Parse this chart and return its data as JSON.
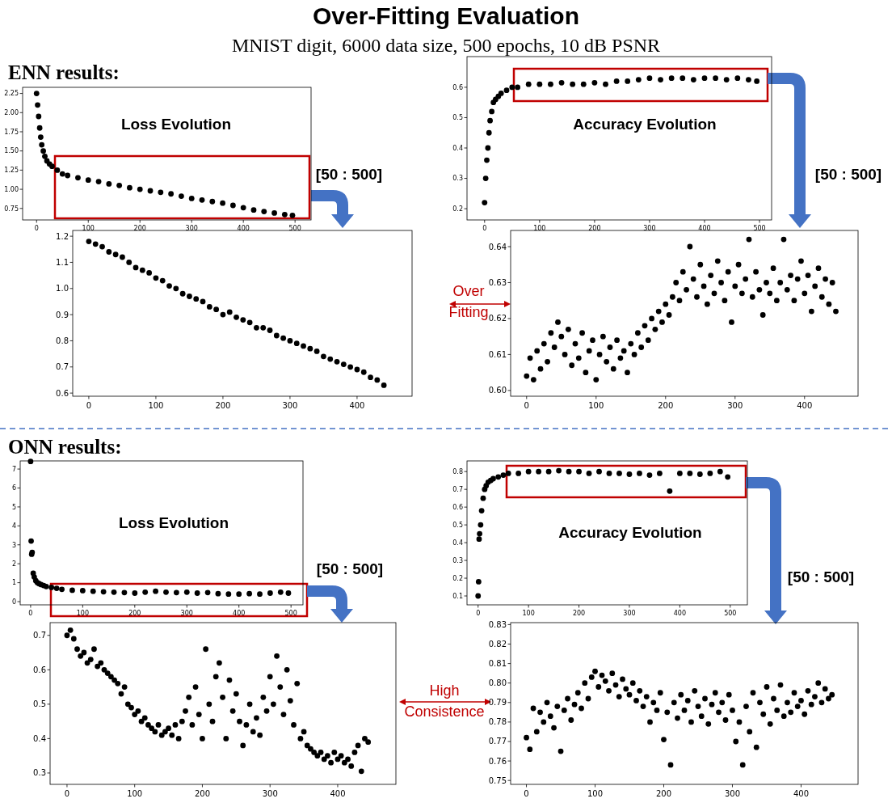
{
  "chart_data": [
    {
      "type": "other",
      "title": "Over-Fitting Evaluation",
      "subtitle": "MNIST digit, 6000 data size, 500 epochs, 10 dB PSNR"
    },
    {
      "type": "scatter",
      "title": "Loss Evolution",
      "annotations": [
        "ENN results:",
        "[50 : 500]"
      ],
      "marker": "circle",
      "xlim": [
        -27,
        531
      ],
      "ylim": [
        0.6,
        2.33
      ],
      "xticks": [
        0,
        100,
        200,
        300,
        400,
        500
      ],
      "yticks": [
        0.75,
        {
          "value": 1,
          "label": "1.00"
        },
        1.25,
        {
          "value": 1.5,
          "label": "1.50"
        },
        1.75,
        {
          "value": 2,
          "label": "2.00"
        },
        2.25
      ],
      "series": [
        {
          "color": "#000000",
          "x": [
            0,
            2,
            4,
            6,
            8,
            10,
            13,
            16,
            20,
            25,
            30,
            40,
            50,
            60,
            80,
            100,
            120,
            140,
            160,
            180,
            200,
            220,
            240,
            260,
            280,
            300,
            320,
            340,
            360,
            380,
            400,
            420,
            440,
            460,
            480,
            495
          ],
          "values": [
            2.25,
            2.1,
            1.95,
            1.8,
            1.68,
            1.58,
            1.5,
            1.43,
            1.37,
            1.33,
            1.3,
            1.25,
            1.2,
            1.18,
            1.15,
            1.12,
            1.1,
            1.07,
            1.05,
            1.02,
            1.0,
            0.98,
            0.96,
            0.94,
            0.91,
            0.88,
            0.86,
            0.84,
            0.82,
            0.79,
            0.76,
            0.73,
            0.71,
            0.69,
            0.67,
            0.66
          ]
        }
      ]
    },
    {
      "type": "scatter",
      "title": "Accuracy Evolution",
      "annotations": [
        "[50 : 500]"
      ],
      "marker": "circle",
      "xlim": [
        -32,
        522
      ],
      "ylim": [
        0.163,
        0.701
      ],
      "xticks": [
        0,
        100,
        200,
        300,
        400,
        500
      ],
      "yticks": [
        0.2,
        0.3,
        0.4,
        0.5,
        0.6
      ],
      "series": [
        {
          "color": "#000000",
          "x": [
            0,
            2,
            4,
            6,
            8,
            10,
            13,
            16,
            20,
            25,
            30,
            40,
            50,
            60,
            80,
            100,
            120,
            140,
            160,
            180,
            200,
            220,
            240,
            260,
            280,
            300,
            320,
            340,
            360,
            380,
            400,
            420,
            440,
            460,
            480,
            495
          ],
          "values": [
            0.22,
            0.3,
            0.36,
            0.4,
            0.45,
            0.49,
            0.52,
            0.55,
            0.56,
            0.57,
            0.58,
            0.59,
            0.6,
            0.6,
            0.61,
            0.61,
            0.61,
            0.615,
            0.61,
            0.61,
            0.615,
            0.61,
            0.62,
            0.62,
            0.625,
            0.63,
            0.625,
            0.63,
            0.63,
            0.625,
            0.63,
            0.63,
            0.625,
            0.63,
            0.625,
            0.62
          ]
        }
      ]
    },
    {
      "type": "scatter",
      "marker": "circle",
      "xlim": [
        -24,
        482
      ],
      "ylim": [
        0.588,
        1.222
      ],
      "xticks": [
        0,
        100,
        200,
        300,
        400
      ],
      "yticks": [
        0.6,
        0.7,
        0.8,
        0.9,
        {
          "value": 1,
          "label": "1.0"
        },
        1.1,
        1.2
      ],
      "series": [
        {
          "color": "#000000",
          "x": [
            0,
            10,
            20,
            30,
            40,
            50,
            60,
            70,
            80,
            90,
            100,
            110,
            120,
            130,
            140,
            150,
            160,
            170,
            180,
            190,
            200,
            210,
            220,
            230,
            240,
            250,
            260,
            270,
            280,
            290,
            300,
            310,
            320,
            330,
            340,
            350,
            360,
            370,
            380,
            390,
            400,
            410,
            420,
            430,
            440
          ],
          "values": [
            1.18,
            1.17,
            1.16,
            1.14,
            1.13,
            1.12,
            1.1,
            1.08,
            1.07,
            1.06,
            1.04,
            1.03,
            1.01,
            1.0,
            0.98,
            0.97,
            0.96,
            0.95,
            0.93,
            0.92,
            0.9,
            0.91,
            0.89,
            0.88,
            0.87,
            0.85,
            0.85,
            0.84,
            0.82,
            0.81,
            0.8,
            0.79,
            0.78,
            0.77,
            0.76,
            0.74,
            0.73,
            0.72,
            0.71,
            0.7,
            0.69,
            0.68,
            0.66,
            0.65,
            0.63
          ]
        }
      ]
    },
    {
      "type": "scatter",
      "annotations": [
        "Over Fitting"
      ],
      "marker": "circle",
      "xlim": [
        -23,
        477
      ],
      "ylim": [
        0.5984,
        0.6445
      ],
      "xticks": [
        0,
        100,
        200,
        300,
        400
      ],
      "yticks": [
        {
          "value": 0.6,
          "label": "0.60"
        },
        0.61,
        0.62,
        0.63,
        0.64
      ],
      "series": [
        {
          "color": "#000000",
          "x": [
            0,
            5,
            10,
            15,
            20,
            25,
            30,
            35,
            40,
            45,
            50,
            55,
            60,
            65,
            70,
            75,
            80,
            85,
            90,
            95,
            100,
            105,
            110,
            115,
            120,
            125,
            130,
            135,
            140,
            145,
            150,
            155,
            160,
            165,
            170,
            175,
            180,
            185,
            190,
            195,
            200,
            205,
            210,
            215,
            220,
            225,
            230,
            235,
            240,
            245,
            250,
            255,
            260,
            265,
            270,
            275,
            280,
            285,
            290,
            295,
            300,
            305,
            310,
            315,
            320,
            325,
            330,
            335,
            340,
            345,
            350,
            355,
            360,
            365,
            370,
            375,
            380,
            385,
            390,
            395,
            400,
            405,
            410,
            415,
            420,
            425,
            430,
            435,
            440,
            445
          ],
          "values": [
            0.604,
            0.609,
            0.603,
            0.611,
            0.606,
            0.613,
            0.608,
            0.616,
            0.612,
            0.619,
            0.615,
            0.61,
            0.617,
            0.607,
            0.613,
            0.609,
            0.616,
            0.605,
            0.611,
            0.614,
            0.603,
            0.61,
            0.615,
            0.608,
            0.612,
            0.606,
            0.614,
            0.609,
            0.611,
            0.605,
            0.613,
            0.61,
            0.616,
            0.612,
            0.618,
            0.614,
            0.62,
            0.617,
            0.622,
            0.619,
            0.624,
            0.621,
            0.626,
            0.63,
            0.625,
            0.633,
            0.628,
            0.64,
            0.631,
            0.626,
            0.635,
            0.629,
            0.624,
            0.632,
            0.627,
            0.636,
            0.63,
            0.625,
            0.633,
            0.619,
            0.629,
            0.635,
            0.627,
            0.631,
            0.642,
            0.626,
            0.633,
            0.628,
            0.621,
            0.63,
            0.627,
            0.634,
            0.625,
            0.63,
            0.642,
            0.628,
            0.632,
            0.625,
            0.631,
            0.636,
            0.627,
            0.632,
            0.622,
            0.629,
            0.634,
            0.626,
            0.631,
            0.624,
            0.63,
            0.622
          ]
        }
      ]
    },
    {
      "type": "scatter",
      "title": "Loss Evolution",
      "annotations": [
        "ONN results:",
        "[50 : 500]"
      ],
      "marker": "circle",
      "xlim": [
        -20,
        523
      ],
      "ylim": [
        -0.17,
        7.43
      ],
      "xticks": [
        0,
        100,
        200,
        300,
        400,
        500
      ],
      "yticks": [
        0,
        1,
        2,
        3,
        4,
        5,
        6,
        7
      ],
      "series": [
        {
          "color": "#000000",
          "x": [
            0,
            1,
            2,
            3,
            5,
            7,
            10,
            13,
            16,
            20,
            25,
            30,
            40,
            50,
            60,
            80,
            100,
            120,
            140,
            160,
            180,
            200,
            220,
            240,
            260,
            280,
            300,
            320,
            340,
            360,
            380,
            400,
            420,
            440,
            460,
            480,
            495
          ],
          "values": [
            7.4,
            3.2,
            2.5,
            2.6,
            1.5,
            1.3,
            1.1,
            1.0,
            0.95,
            0.9,
            0.85,
            0.8,
            0.75,
            0.7,
            0.65,
            0.6,
            0.58,
            0.55,
            0.52,
            0.5,
            0.48,
            0.45,
            0.5,
            0.55,
            0.5,
            0.48,
            0.5,
            0.45,
            0.48,
            0.42,
            0.4,
            0.4,
            0.42,
            0.4,
            0.45,
            0.5,
            0.45
          ]
        }
      ]
    },
    {
      "type": "scatter",
      "title": "Accuracy Evolution",
      "annotations": [
        "[50 : 500]"
      ],
      "marker": "circle",
      "xlim": [
        -22,
        534
      ],
      "ylim": [
        0.05,
        0.86
      ],
      "xticks": [
        0,
        100,
        200,
        300,
        400,
        500
      ],
      "yticks": [
        0.1,
        0.2,
        0.3,
        0.4,
        0.5,
        0.6,
        0.7,
        0.8
      ],
      "series": [
        {
          "color": "#000000",
          "x": [
            0,
            1,
            2,
            3,
            5,
            7,
            10,
            13,
            16,
            20,
            25,
            30,
            40,
            50,
            60,
            80,
            100,
            120,
            140,
            160,
            180,
            200,
            220,
            240,
            260,
            280,
            300,
            320,
            340,
            360,
            380,
            400,
            420,
            440,
            460,
            480,
            495
          ],
          "values": [
            0.1,
            0.18,
            0.42,
            0.45,
            0.5,
            0.58,
            0.65,
            0.7,
            0.72,
            0.74,
            0.75,
            0.76,
            0.77,
            0.78,
            0.79,
            0.79,
            0.8,
            0.8,
            0.8,
            0.805,
            0.8,
            0.8,
            0.79,
            0.8,
            0.79,
            0.79,
            0.785,
            0.79,
            0.78,
            0.79,
            0.69,
            0.79,
            0.79,
            0.785,
            0.79,
            0.8,
            0.77
          ]
        }
      ]
    },
    {
      "type": "scatter",
      "marker": "circle",
      "xlim": [
        -25,
        486
      ],
      "ylim": [
        0.267,
        0.737
      ],
      "xticks": [
        0,
        100,
        200,
        300,
        400
      ],
      "yticks": [
        0.3,
        0.4,
        0.5,
        0.6,
        0.7
      ],
      "series": [
        {
          "color": "#000000",
          "x": [
            0,
            5,
            10,
            15,
            20,
            25,
            30,
            35,
            40,
            45,
            50,
            55,
            60,
            65,
            70,
            75,
            80,
            85,
            90,
            95,
            100,
            105,
            110,
            115,
            120,
            125,
            130,
            135,
            140,
            145,
            150,
            155,
            160,
            165,
            170,
            175,
            180,
            185,
            190,
            195,
            200,
            205,
            210,
            215,
            220,
            225,
            230,
            235,
            240,
            245,
            250,
            255,
            260,
            265,
            270,
            275,
            280,
            285,
            290,
            295,
            300,
            305,
            310,
            315,
            320,
            325,
            330,
            335,
            340,
            345,
            350,
            355,
            360,
            365,
            370,
            375,
            380,
            385,
            390,
            395,
            400,
            405,
            410,
            415,
            420,
            425,
            430,
            435,
            440,
            445
          ],
          "values": [
            0.7,
            0.715,
            0.69,
            0.66,
            0.64,
            0.65,
            0.62,
            0.63,
            0.66,
            0.61,
            0.62,
            0.6,
            0.59,
            0.58,
            0.57,
            0.56,
            0.53,
            0.55,
            0.5,
            0.49,
            0.47,
            0.48,
            0.45,
            0.46,
            0.44,
            0.43,
            0.42,
            0.44,
            0.41,
            0.42,
            0.43,
            0.41,
            0.44,
            0.4,
            0.45,
            0.48,
            0.52,
            0.44,
            0.55,
            0.47,
            0.4,
            0.66,
            0.5,
            0.45,
            0.58,
            0.62,
            0.52,
            0.4,
            0.57,
            0.48,
            0.53,
            0.45,
            0.38,
            0.44,
            0.5,
            0.42,
            0.46,
            0.41,
            0.52,
            0.48,
            0.58,
            0.5,
            0.64,
            0.55,
            0.47,
            0.6,
            0.51,
            0.44,
            0.56,
            0.4,
            0.42,
            0.38,
            0.37,
            0.36,
            0.35,
            0.36,
            0.34,
            0.35,
            0.33,
            0.36,
            0.34,
            0.35,
            0.33,
            0.34,
            0.32,
            0.36,
            0.38,
            0.305,
            0.4,
            0.39
          ]
        }
      ]
    },
    {
      "type": "scatter",
      "annotations": [
        "High Consistence"
      ],
      "marker": "circle",
      "xlim": [
        -23,
        483
      ],
      "ylim": [
        0.748,
        0.831
      ],
      "xticks": [
        0,
        100,
        200,
        300,
        400
      ],
      "yticks": [
        0.75,
        0.76,
        0.77,
        0.78,
        0.79,
        {
          "value": 0.8,
          "label": "0.80"
        },
        0.81,
        0.82,
        0.83
      ],
      "series": [
        {
          "color": "#000000",
          "x": [
            0,
            5,
            10,
            15,
            20,
            25,
            30,
            35,
            40,
            45,
            50,
            55,
            60,
            65,
            70,
            75,
            80,
            85,
            90,
            95,
            100,
            105,
            110,
            115,
            120,
            125,
            130,
            135,
            140,
            145,
            150,
            155,
            160,
            165,
            170,
            175,
            180,
            185,
            190,
            195,
            200,
            205,
            210,
            215,
            220,
            225,
            230,
            235,
            240,
            245,
            250,
            255,
            260,
            265,
            270,
            275,
            280,
            285,
            290,
            295,
            300,
            305,
            310,
            315,
            320,
            325,
            330,
            335,
            340,
            345,
            350,
            355,
            360,
            365,
            370,
            375,
            380,
            385,
            390,
            395,
            400,
            405,
            410,
            415,
            420,
            425,
            430,
            435,
            440,
            445
          ],
          "values": [
            0.772,
            0.766,
            0.787,
            0.775,
            0.785,
            0.78,
            0.79,
            0.783,
            0.777,
            0.788,
            0.765,
            0.786,
            0.792,
            0.781,
            0.789,
            0.795,
            0.787,
            0.8,
            0.792,
            0.803,
            0.806,
            0.798,
            0.804,
            0.801,
            0.796,
            0.805,
            0.799,
            0.793,
            0.802,
            0.797,
            0.794,
            0.8,
            0.791,
            0.796,
            0.788,
            0.793,
            0.78,
            0.79,
            0.786,
            0.795,
            0.771,
            0.785,
            0.758,
            0.79,
            0.782,
            0.794,
            0.786,
            0.791,
            0.78,
            0.796,
            0.788,
            0.783,
            0.792,
            0.779,
            0.789,
            0.795,
            0.785,
            0.79,
            0.781,
            0.794,
            0.786,
            0.77,
            0.78,
            0.758,
            0.788,
            0.775,
            0.795,
            0.767,
            0.79,
            0.784,
            0.798,
            0.779,
            0.792,
            0.786,
            0.799,
            0.783,
            0.79,
            0.785,
            0.795,
            0.788,
            0.791,
            0.784,
            0.796,
            0.789,
            0.793,
            0.8,
            0.79,
            0.797,
            0.792,
            0.794
          ]
        }
      ]
    }
  ]
}
